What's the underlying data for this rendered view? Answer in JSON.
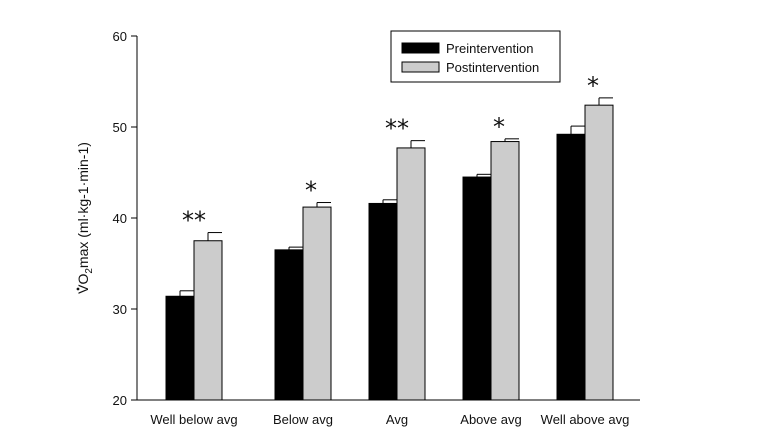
{
  "chart_data": {
    "type": "bar",
    "title": "",
    "xlabel": "",
    "ylabel": {
      "prefix": "V",
      "sub": "2",
      "pre_sub": "O",
      "rest": "max (ml·kg-1·min-1)"
    },
    "ylim": [
      20,
      60
    ],
    "yticks": [
      "20",
      "30",
      "40",
      "50",
      "60"
    ],
    "grid": false,
    "legend_position": "top-center",
    "categories": [
      "Well below avg",
      "Below avg",
      "Avg",
      "Above avg",
      "Well above avg"
    ],
    "series": [
      {
        "name": "Preintervention",
        "color": "#000000",
        "values": [
          31.4,
          36.5,
          41.6,
          44.5,
          49.2
        ],
        "errors": [
          0.6,
          0.3,
          0.4,
          0.3,
          0.9
        ]
      },
      {
        "name": "Postintervention",
        "color": "#cccccc",
        "values": [
          37.5,
          41.2,
          47.7,
          48.4,
          52.4
        ],
        "errors": [
          0.9,
          0.5,
          0.8,
          0.3,
          0.8
        ]
      }
    ],
    "significance": [
      "**",
      "*",
      "**",
      "*",
      "*"
    ]
  }
}
